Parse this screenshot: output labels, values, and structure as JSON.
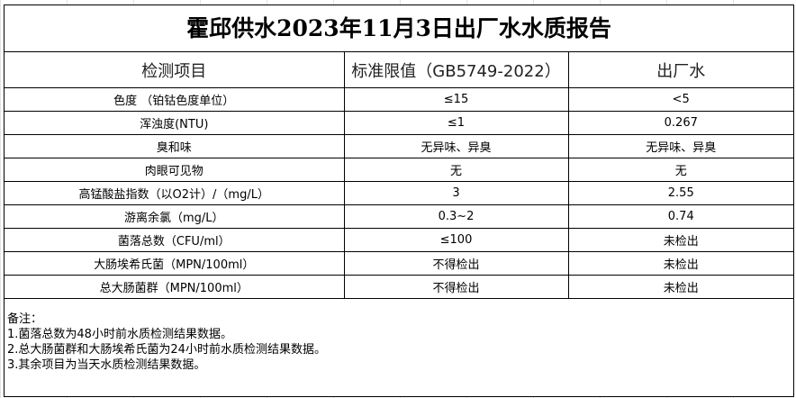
{
  "title": "霍邱供水2023年11月3日出厂水水质报告",
  "headers": [
    "检测项目",
    "标准限值（GB5749-2022）",
    "出厂水"
  ],
  "rows": [
    [
      "色度 （铂钴色度单位）",
      "≤15",
      "<5"
    ],
    [
      "浑浊度(NTU)",
      "≤1",
      "0.267"
    ],
    [
      "臭和味",
      "无异味、异臭",
      "无异味、异臭"
    ],
    [
      "肉眼可见物",
      "无",
      "无"
    ],
    [
      "高锰酸盐指数（以O2计）/（mg/L）",
      "3",
      "2.55"
    ],
    [
      "游离余氯（mg/L）",
      "0.3~2",
      "0.74"
    ],
    [
      "菌落总数（CFU/ml）",
      "≤100",
      "未检出"
    ],
    [
      "大肠埃希氏菌（MPN/100ml）",
      "不得检出",
      "未检出"
    ],
    [
      "总大肠菌群（MPN/100ml）",
      "不得检出",
      "未检出"
    ]
  ],
  "notes": [
    "备注：",
    "1.菌落总数为48小时前水质检测结果数据。",
    "2.总大肠菌群和大肠埃希氏菌为24小时前水质检测结果数据。",
    "3.其余项目为当天水质检测结果数据。"
  ]
}
